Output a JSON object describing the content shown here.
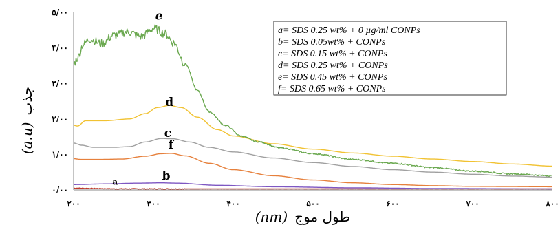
{
  "chart_data": {
    "type": "line",
    "xlabel_unit": "(nm)",
    "xlabel_text": "طول موج",
    "ylabel_unit": "(a.u)",
    "ylabel_text": "جذب",
    "xlim": [
      200,
      800
    ],
    "ylim": [
      0,
      5
    ],
    "x_ticks": [
      200,
      300,
      400,
      500,
      600,
      700,
      800
    ],
    "x_tick_labels": [
      "۲۰۰",
      "۳۰۰",
      "۴۰۰",
      "۵۰۰",
      "۶۰۰",
      "۷۰۰",
      "۸۰۰"
    ],
    "y_ticks": [
      0,
      1,
      2,
      3,
      4,
      5
    ],
    "y_tick_labels": [
      "۰/۰۰",
      "۱/۰۰",
      "۲/۰۰",
      "۳/۰۰",
      "۴/۰۰",
      "۵/۰۰"
    ],
    "grid": false,
    "legend_position": "top-right",
    "legend": [
      "a= SDS 0.25 wt% + 0 µg/ml CONPs",
      "b= SDS 0.05wt% + CONPs",
      "c= SDS 0.15 wt% + CONPs",
      "d= SDS 0.25 wt% + CONPs",
      "e= SDS 0.45 wt% + CONPs",
      "f= SDS 0.65 wt% + CONPs"
    ],
    "series": [
      {
        "label": "a",
        "color": "#c0392b",
        "noise": 0.01,
        "label_at": [
          252,
          0.03
        ],
        "points": [
          [
            200,
            0.05
          ],
          [
            230,
            0.04
          ],
          [
            250,
            0.03
          ],
          [
            300,
            0.03
          ],
          [
            400,
            0.03
          ],
          [
            600,
            0.03
          ],
          [
            800,
            0.03
          ]
        ]
      },
      {
        "label": "b",
        "color": "#7e57c2",
        "noise": 0,
        "label_at": [
          316,
          0.17
        ],
        "points": [
          [
            200,
            0.15
          ],
          [
            240,
            0.17
          ],
          [
            280,
            0.19
          ],
          [
            310,
            0.2
          ],
          [
            330,
            0.19
          ],
          [
            380,
            0.13
          ],
          [
            450,
            0.09
          ],
          [
            550,
            0.06
          ],
          [
            650,
            0.04
          ],
          [
            800,
            0.03
          ]
        ]
      },
      {
        "label": "c",
        "color": "#a0a0a0",
        "noise": 0,
        "label_at": [
          318,
          1.38
        ],
        "points": [
          [
            200,
            1.32
          ],
          [
            210,
            1.26
          ],
          [
            225,
            1.2
          ],
          [
            250,
            1.2
          ],
          [
            270,
            1.22
          ],
          [
            290,
            1.35
          ],
          [
            310,
            1.45
          ],
          [
            325,
            1.44
          ],
          [
            345,
            1.35
          ],
          [
            370,
            1.2
          ],
          [
            400,
            1.07
          ],
          [
            450,
            0.9
          ],
          [
            500,
            0.77
          ],
          [
            550,
            0.66
          ],
          [
            600,
            0.57
          ],
          [
            650,
            0.5
          ],
          [
            700,
            0.44
          ],
          [
            750,
            0.39
          ],
          [
            800,
            0.36
          ]
        ]
      },
      {
        "label": "d",
        "color": "#f1c232",
        "noise": 0,
        "label_at": [
          320,
          2.25
        ],
        "points": [
          [
            200,
            1.82
          ],
          [
            205,
            1.8
          ],
          [
            215,
            1.95
          ],
          [
            240,
            1.95
          ],
          [
            270,
            2.0
          ],
          [
            290,
            2.15
          ],
          [
            305,
            2.32
          ],
          [
            320,
            2.38
          ],
          [
            335,
            2.32
          ],
          [
            355,
            2.05
          ],
          [
            380,
            1.7
          ],
          [
            400,
            1.52
          ],
          [
            450,
            1.3
          ],
          [
            500,
            1.15
          ],
          [
            550,
            1.04
          ],
          [
            600,
            0.95
          ],
          [
            650,
            0.87
          ],
          [
            700,
            0.8
          ],
          [
            750,
            0.73
          ],
          [
            800,
            0.67
          ]
        ]
      },
      {
        "label": "e",
        "color": "#6aa84f",
        "noise": 0.12,
        "label_at": [
          307,
          4.68
        ],
        "points": [
          [
            200,
            3.55
          ],
          [
            205,
            3.72
          ],
          [
            212,
            4.1
          ],
          [
            220,
            4.25
          ],
          [
            235,
            4.12
          ],
          [
            250,
            4.35
          ],
          [
            268,
            4.45
          ],
          [
            285,
            4.32
          ],
          [
            300,
            4.55
          ],
          [
            315,
            4.4
          ],
          [
            325,
            4.15
          ],
          [
            340,
            3.55
          ],
          [
            355,
            2.8
          ],
          [
            370,
            2.2
          ],
          [
            390,
            1.82
          ],
          [
            410,
            1.52
          ],
          [
            430,
            1.36
          ],
          [
            460,
            1.18
          ],
          [
            500,
            1.02
          ],
          [
            550,
            0.86
          ],
          [
            600,
            0.75
          ],
          [
            650,
            0.63
          ],
          [
            700,
            0.53
          ],
          [
            750,
            0.45
          ],
          [
            800,
            0.4
          ]
        ]
      },
      {
        "label": "f",
        "color": "#e6803c",
        "noise": 0,
        "label_at": [
          322,
          1.05
        ],
        "points": [
          [
            200,
            0.88
          ],
          [
            210,
            0.86
          ],
          [
            230,
            0.86
          ],
          [
            260,
            0.87
          ],
          [
            290,
            0.95
          ],
          [
            310,
            1.02
          ],
          [
            322,
            1.03
          ],
          [
            340,
            0.96
          ],
          [
            370,
            0.75
          ],
          [
            400,
            0.57
          ],
          [
            450,
            0.4
          ],
          [
            500,
            0.28
          ],
          [
            550,
            0.2
          ],
          [
            600,
            0.15
          ],
          [
            650,
            0.12
          ],
          [
            700,
            0.1
          ],
          [
            800,
            0.09
          ]
        ]
      }
    ]
  }
}
